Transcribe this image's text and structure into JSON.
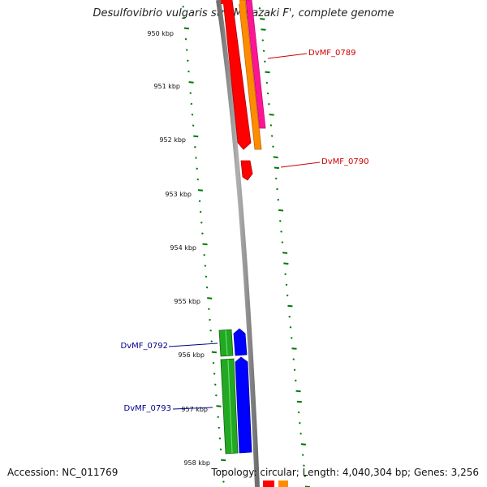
{
  "header": {
    "title": "Desulfovibrio vulgaris str. 'Miyazaki F', complete genome"
  },
  "footer": {
    "accession": "Accession: NC_011769",
    "summary": "Topology: circular; Length: 4,040,304 bp; Genes: 3,256"
  },
  "ticks": [
    {
      "label": "950 kbp",
      "pos": 950
    },
    {
      "label": "951 kbp",
      "pos": 951
    },
    {
      "label": "952 kbp",
      "pos": 952
    },
    {
      "label": "953 kbp",
      "pos": 953
    },
    {
      "label": "954 kbp",
      "pos": 954
    },
    {
      "label": "955 kbp",
      "pos": 955
    },
    {
      "label": "956 kbp",
      "pos": 956
    },
    {
      "label": "957 kbp",
      "pos": 957
    },
    {
      "label": "958 kbp",
      "pos": 958
    }
  ],
  "genes": [
    {
      "label": "DvMF_0789",
      "color": "#cc0000"
    },
    {
      "label": "DvMF_0790",
      "color": "#cc0000"
    },
    {
      "label": "DvMF_0792",
      "color": "#00008b"
    },
    {
      "label": "DvMF_0793",
      "color": "#00008b"
    }
  ],
  "colors": {
    "backbone": "#8c8c8c",
    "red": "#ff0000",
    "orange": "#ff8c00",
    "magenta": "#ff1493",
    "green": "#22a822",
    "blue": "#0000ff",
    "tick": "#007a00"
  }
}
